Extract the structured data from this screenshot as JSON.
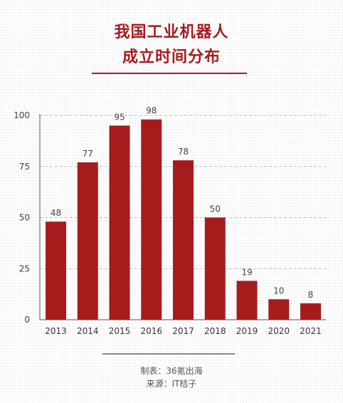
{
  "title": {
    "line1": "我国工业机器人",
    "line2": "成立时间分布"
  },
  "footer": {
    "made_by": "制表：36氪出海",
    "source": "来源：IT桔子"
  },
  "colors": {
    "bar": "#a61c1c",
    "title": "#a61c1c",
    "grid": "#bbbbbb"
  },
  "chart_data": {
    "type": "bar",
    "categories": [
      "2013",
      "2014",
      "2015",
      "2016",
      "2017",
      "2018",
      "2019",
      "2020",
      "2021"
    ],
    "values": [
      48,
      77,
      95,
      98,
      78,
      50,
      19,
      10,
      8
    ],
    "title": "我国工业机器人成立时间分布",
    "xlabel": "",
    "ylabel": "",
    "ylim": [
      0,
      100
    ],
    "yticks": [
      0,
      25,
      50,
      75,
      100
    ],
    "grid": true,
    "data_labels": true
  }
}
